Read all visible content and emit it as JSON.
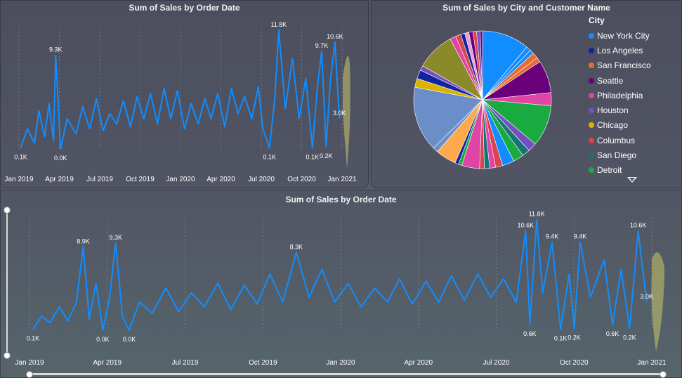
{
  "panels": {
    "top_left_title": "Sum of Sales by Order Date",
    "top_right_title": "Sum of Sales by City and Customer Name",
    "bottom_title": "Sum of Sales by Order Date"
  },
  "legend": {
    "title": "City",
    "items": [
      {
        "label": "New York City",
        "color": "#118DFF"
      },
      {
        "label": "Los Angeles",
        "color": "#12239E"
      },
      {
        "label": "San Francisco",
        "color": "#E66C37"
      },
      {
        "label": "Seattle",
        "color": "#6B007B"
      },
      {
        "label": "Philadelphia",
        "color": "#E044A7"
      },
      {
        "label": "Houston",
        "color": "#744EC2"
      },
      {
        "label": "Chicago",
        "color": "#D9B300"
      },
      {
        "label": "Columbus",
        "color": "#D64550"
      },
      {
        "label": "San Diego",
        "color": "#197278"
      },
      {
        "label": "Detroit",
        "color": "#1AAB40"
      }
    ]
  },
  "chart_data": [
    {
      "type": "line",
      "title": "Sum of Sales by Order Date",
      "x_range": [
        "2019-01-01",
        "2020-12-31"
      ],
      "x_ticks": [
        "Jan 2019",
        "Apr 2019",
        "Jul 2019",
        "Oct 2019",
        "Jan 2020",
        "Apr 2020",
        "Jul 2020",
        "Oct 2020",
        "Jan 2021"
      ],
      "ylim": [
        0,
        12000
      ],
      "series_color": "#118DFF",
      "forecast_color": "#C8C86A",
      "points": [
        [
          "2019-01-05",
          100
        ],
        [
          "2019-01-20",
          2000
        ],
        [
          "2019-02-05",
          600
        ],
        [
          "2019-02-15",
          3800
        ],
        [
          "2019-02-28",
          1200
        ],
        [
          "2019-03-10",
          4500
        ],
        [
          "2019-03-20",
          800
        ],
        [
          "2019-03-25",
          9300
        ],
        [
          "2019-04-05",
          0
        ],
        [
          "2019-04-20",
          3000
        ],
        [
          "2019-05-10",
          1500
        ],
        [
          "2019-05-25",
          4200
        ],
        [
          "2019-06-10",
          2000
        ],
        [
          "2019-06-25",
          5000
        ],
        [
          "2019-07-10",
          1800
        ],
        [
          "2019-07-25",
          3500
        ],
        [
          "2019-08-10",
          2500
        ],
        [
          "2019-08-25",
          4800
        ],
        [
          "2019-09-10",
          2200
        ],
        [
          "2019-09-25",
          5200
        ],
        [
          "2019-10-10",
          3000
        ],
        [
          "2019-10-25",
          5500
        ],
        [
          "2019-11-10",
          2500
        ],
        [
          "2019-11-25",
          6000
        ],
        [
          "2019-12-10",
          3000
        ],
        [
          "2019-12-25",
          5800
        ],
        [
          "2020-01-10",
          2000
        ],
        [
          "2020-01-25",
          4500
        ],
        [
          "2020-02-10",
          2500
        ],
        [
          "2020-02-25",
          5000
        ],
        [
          "2020-03-10",
          3000
        ],
        [
          "2020-03-25",
          5500
        ],
        [
          "2020-04-10",
          2200
        ],
        [
          "2020-04-25",
          6000
        ],
        [
          "2020-05-10",
          3500
        ],
        [
          "2020-05-25",
          5200
        ],
        [
          "2020-06-10",
          3000
        ],
        [
          "2020-06-25",
          6200
        ],
        [
          "2020-07-05",
          2000
        ],
        [
          "2020-07-20",
          100
        ],
        [
          "2020-08-01",
          5000
        ],
        [
          "2020-08-10",
          11800
        ],
        [
          "2020-08-25",
          4000
        ],
        [
          "2020-09-10",
          9000
        ],
        [
          "2020-09-25",
          3000
        ],
        [
          "2020-10-10",
          7000
        ],
        [
          "2020-10-25",
          100
        ],
        [
          "2020-11-05",
          6000
        ],
        [
          "2020-11-15",
          9700
        ],
        [
          "2020-11-25",
          200
        ],
        [
          "2020-12-05",
          7000
        ],
        [
          "2020-12-15",
          10600
        ],
        [
          "2020-12-25",
          3000
        ]
      ],
      "data_labels": [
        {
          "x": "2019-01-05",
          "y": 100,
          "text": "0.1K"
        },
        {
          "x": "2019-03-25",
          "y": 9300,
          "text": "9.3K"
        },
        {
          "x": "2019-04-05",
          "y": 0,
          "text": "0.0K"
        },
        {
          "x": "2020-07-20",
          "y": 100,
          "text": "0.1K"
        },
        {
          "x": "2020-08-10",
          "y": 11800,
          "text": "11.8K"
        },
        {
          "x": "2020-10-25",
          "y": 100,
          "text": "0.1K"
        },
        {
          "x": "2020-11-15",
          "y": 9700,
          "text": "9.7K"
        },
        {
          "x": "2020-11-25",
          "y": 200,
          "text": "0.2K"
        },
        {
          "x": "2020-12-15",
          "y": 10600,
          "text": "10.6K"
        },
        {
          "x": "2020-12-25",
          "y": 3000,
          "text": "3.0K"
        }
      ]
    },
    {
      "type": "pie",
      "title": "Sum of Sales by City and Customer Name",
      "legend_title": "City",
      "legend_position": "right",
      "slices": [
        {
          "label": "New York City",
          "value": 8.0,
          "color": "#118DFF"
        },
        {
          "label": "New York City",
          "value": 0.8,
          "color": "#118DFF"
        },
        {
          "label": "New York City",
          "value": 0.7,
          "color": "#118DFF"
        },
        {
          "label": "San Francisco",
          "value": 1.0,
          "color": "#E66C37"
        },
        {
          "label": "San Francisco",
          "value": 0.8,
          "color": "#E66C37"
        },
        {
          "label": "Seattle",
          "value": 5.5,
          "color": "#6B007B"
        },
        {
          "label": "Philadelphia",
          "value": 2.2,
          "color": "#E044A7"
        },
        {
          "label": "Detroit",
          "value": 7.0,
          "color": "#1AAB40"
        },
        {
          "label": "Houston",
          "value": 1.5,
          "color": "#744EC2"
        },
        {
          "label": "San Diego",
          "value": 1.3,
          "color": "#197278"
        },
        {
          "label": "Detroit",
          "value": 1.8,
          "color": "#1AAB40"
        },
        {
          "label": "New York City",
          "value": 2.0,
          "color": "#118DFF"
        },
        {
          "label": "Columbus",
          "value": 1.2,
          "color": "#D64550"
        },
        {
          "label": "Philadelphia",
          "value": 1.0,
          "color": "#E044A7"
        },
        {
          "label": "San Diego",
          "value": 0.9,
          "color": "#197278"
        },
        {
          "label": "Columbus",
          "value": 0.8,
          "color": "#D64550"
        },
        {
          "label": "Philadelphia",
          "value": 3.0,
          "color": "#E044A7"
        },
        {
          "label": "Detroit",
          "value": 0.6,
          "color": "#1AAB40"
        },
        {
          "label": "Los Angeles",
          "value": 0.6,
          "color": "#12239E"
        },
        {
          "label": "Chicago",
          "value": 3.5,
          "color": "#FFA94D"
        },
        {
          "label": "San Diego",
          "value": 0.9,
          "color": "#6C8EC8"
        },
        {
          "label": "Houston",
          "value": 11.0,
          "color": "#6C8EC8"
        },
        {
          "label": "Chicago",
          "value": 1.5,
          "color": "#D9B300"
        },
        {
          "label": "Los Angeles",
          "value": 1.5,
          "color": "#12239E"
        },
        {
          "label": "Houston",
          "value": 0.8,
          "color": "#744EC2"
        },
        {
          "label": "Chicago",
          "value": 6.5,
          "color": "#8A8A2A"
        },
        {
          "label": "Philadelphia",
          "value": 1.0,
          "color": "#E044A7"
        },
        {
          "label": "Columbus",
          "value": 0.9,
          "color": "#D64550"
        },
        {
          "label": "Los Angeles",
          "value": 0.7,
          "color": "#12239E"
        },
        {
          "label": "Philadelphia",
          "value": 0.7,
          "color": "#E7A0D4"
        },
        {
          "label": "Seattle",
          "value": 0.7,
          "color": "#6B007B"
        },
        {
          "label": "Columbus",
          "value": 0.6,
          "color": "#D64550"
        },
        {
          "label": "Houston",
          "value": 0.6,
          "color": "#744EC2"
        },
        {
          "label": "Seattle",
          "value": 0.4,
          "color": "#6B007B"
        }
      ]
    },
    {
      "type": "line",
      "title": "Sum of Sales by Order Date",
      "x_range": [
        "2019-01-01",
        "2020-12-31"
      ],
      "x_ticks": [
        "Jan 2019",
        "Apr 2019",
        "Jul 2019",
        "Oct 2019",
        "Jan 2020",
        "Apr 2020",
        "Jul 2020",
        "Oct 2020",
        "Jan 2021"
      ],
      "ylim": [
        0,
        12000
      ],
      "series_color": "#118DFF",
      "forecast_color": "#C8C86A",
      "points": [
        [
          "2019-01-05",
          100
        ],
        [
          "2019-01-15",
          1500
        ],
        [
          "2019-01-25",
          800
        ],
        [
          "2019-02-05",
          2500
        ],
        [
          "2019-02-15",
          1000
        ],
        [
          "2019-02-25",
          3000
        ],
        [
          "2019-03-05",
          8900
        ],
        [
          "2019-03-12",
          1200
        ],
        [
          "2019-03-20",
          5000
        ],
        [
          "2019-03-28",
          0
        ],
        [
          "2019-04-05",
          3500
        ],
        [
          "2019-04-12",
          9300
        ],
        [
          "2019-04-20",
          1500
        ],
        [
          "2019-04-28",
          0
        ],
        [
          "2019-05-10",
          3000
        ],
        [
          "2019-05-25",
          1800
        ],
        [
          "2019-06-10",
          4500
        ],
        [
          "2019-06-25",
          2000
        ],
        [
          "2019-07-10",
          4000
        ],
        [
          "2019-07-25",
          2500
        ],
        [
          "2019-08-10",
          5000
        ],
        [
          "2019-08-25",
          2200
        ],
        [
          "2019-09-10",
          4800
        ],
        [
          "2019-09-25",
          2800
        ],
        [
          "2019-10-10",
          6000
        ],
        [
          "2019-10-25",
          3000
        ],
        [
          "2019-11-10",
          8300
        ],
        [
          "2019-11-25",
          3500
        ],
        [
          "2019-12-10",
          6500
        ],
        [
          "2019-12-25",
          3000
        ],
        [
          "2020-01-10",
          5000
        ],
        [
          "2020-01-25",
          2500
        ],
        [
          "2020-02-10",
          4500
        ],
        [
          "2020-02-25",
          3000
        ],
        [
          "2020-03-10",
          5500
        ],
        [
          "2020-03-25",
          2800
        ],
        [
          "2020-04-10",
          5200
        ],
        [
          "2020-04-25",
          3000
        ],
        [
          "2020-05-10",
          5800
        ],
        [
          "2020-05-25",
          3200
        ],
        [
          "2020-06-10",
          6000
        ],
        [
          "2020-06-25",
          3500
        ],
        [
          "2020-07-10",
          5500
        ],
        [
          "2020-07-25",
          3000
        ],
        [
          "2020-08-05",
          10600
        ],
        [
          "2020-08-10",
          600
        ],
        [
          "2020-08-18",
          11800
        ],
        [
          "2020-08-25",
          4000
        ],
        [
          "2020-09-05",
          9400
        ],
        [
          "2020-09-15",
          100
        ],
        [
          "2020-09-25",
          6000
        ],
        [
          "2020-10-01",
          200
        ],
        [
          "2020-10-08",
          9400
        ],
        [
          "2020-10-20",
          3500
        ],
        [
          "2020-11-05",
          7500
        ],
        [
          "2020-11-15",
          600
        ],
        [
          "2020-11-25",
          6500
        ],
        [
          "2020-12-05",
          200
        ],
        [
          "2020-12-15",
          10600
        ],
        [
          "2020-12-25",
          3000
        ]
      ],
      "data_labels": [
        {
          "x": "2019-01-05",
          "y": 100,
          "text": "0.1K"
        },
        {
          "x": "2019-03-05",
          "y": 8900,
          "text": "8.9K"
        },
        {
          "x": "2019-03-28",
          "y": 0,
          "text": "0.0K"
        },
        {
          "x": "2019-04-12",
          "y": 9300,
          "text": "9.3K"
        },
        {
          "x": "2019-04-28",
          "y": 0,
          "text": "0.0K"
        },
        {
          "x": "2019-11-10",
          "y": 8300,
          "text": "8.3K"
        },
        {
          "x": "2020-08-05",
          "y": 10600,
          "text": "10.6K"
        },
        {
          "x": "2020-08-10",
          "y": 600,
          "text": "0.6K"
        },
        {
          "x": "2020-08-18",
          "y": 11800,
          "text": "11.8K"
        },
        {
          "x": "2020-09-05",
          "y": 9400,
          "text": "9.4K"
        },
        {
          "x": "2020-09-15",
          "y": 100,
          "text": "0.1K"
        },
        {
          "x": "2020-10-01",
          "y": 200,
          "text": "0.2K"
        },
        {
          "x": "2020-10-08",
          "y": 9400,
          "text": "9.4K"
        },
        {
          "x": "2020-11-15",
          "y": 600,
          "text": "0.6K"
        },
        {
          "x": "2020-12-05",
          "y": 200,
          "text": "0.2K"
        },
        {
          "x": "2020-12-15",
          "y": 10600,
          "text": "10.6K"
        },
        {
          "x": "2020-12-25",
          "y": 3000,
          "text": "3.0K"
        }
      ]
    }
  ]
}
